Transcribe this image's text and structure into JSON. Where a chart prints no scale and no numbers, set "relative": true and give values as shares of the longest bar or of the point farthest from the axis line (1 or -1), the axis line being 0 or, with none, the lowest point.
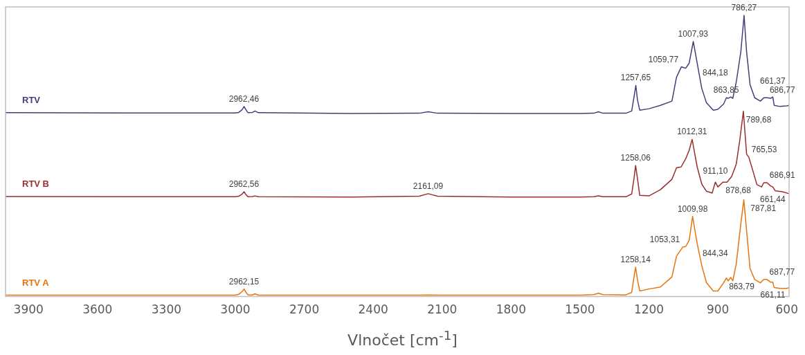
{
  "chart_data": {
    "type": "line",
    "relative": true,
    "xlabel": "Vlnočet [cm$^{-1}$]",
    "xlim": [
      4000,
      590
    ],
    "xticks": [
      3900,
      3600,
      3300,
      3000,
      2700,
      2400,
      2100,
      1800,
      1500,
      1200,
      900,
      600
    ],
    "grid": false,
    "legend": false,
    "marker": "none",
    "line_style": "solid",
    "series": [
      {
        "name": "RTV",
        "color": "#4b3a78",
        "x": [
          4000,
          3500,
          3000,
          2985,
          2970,
          2962,
          2955,
          2945,
          2925,
          2915,
          2900,
          2500,
          2200,
          2161,
          2120,
          1800,
          1500,
          1440,
          1420,
          1400,
          1300,
          1275,
          1265,
          1257,
          1250,
          1240,
          1200,
          1150,
          1100,
          1080,
          1059,
          1040,
          1025,
          1007,
          990,
          970,
          950,
          920,
          900,
          875,
          863,
          855,
          844,
          835,
          820,
          800,
          786,
          775,
          760,
          740,
          715,
          700,
          686,
          670,
          661,
          655,
          630,
          600,
          590
        ],
        "values": [
          0.654,
          0.653,
          0.653,
          0.655,
          0.665,
          0.676,
          0.666,
          0.654,
          0.655,
          0.66,
          0.654,
          0.651,
          0.652,
          0.657,
          0.652,
          0.651,
          0.651,
          0.652,
          0.657,
          0.652,
          0.652,
          0.66,
          0.71,
          0.751,
          0.7,
          0.663,
          0.668,
          0.68,
          0.695,
          0.78,
          0.817,
          0.812,
          0.83,
          0.907,
          0.83,
          0.74,
          0.69,
          0.663,
          0.666,
          0.685,
          0.707,
          0.705,
          0.71,
          0.705,
          0.763,
          0.871,
          1.0,
          0.871,
          0.754,
          0.707,
          0.695,
          0.707,
          0.707,
          0.705,
          0.71,
          0.68,
          0.676,
          0.678,
          0.68
        ]
      },
      {
        "name": "RTV B",
        "color": "#9b2c2c",
        "x": [
          4000,
          3500,
          3000,
          2985,
          2970,
          2962,
          2955,
          2945,
          2925,
          2915,
          2900,
          2500,
          2200,
          2161,
          2120,
          1800,
          1500,
          1440,
          1420,
          1400,
          1300,
          1275,
          1265,
          1258,
          1250,
          1240,
          1200,
          1150,
          1100,
          1080,
          1060,
          1040,
          1025,
          1012,
          990,
          970,
          950,
          925,
          911,
          900,
          878,
          860,
          840,
          820,
          805,
          789,
          775,
          765,
          750,
          730,
          710,
          700,
          686,
          670,
          661,
          650,
          620,
          590
        ],
        "values": [
          0.356,
          0.355,
          0.355,
          0.357,
          0.365,
          0.373,
          0.364,
          0.355,
          0.356,
          0.358,
          0.355,
          0.354,
          0.357,
          0.366,
          0.357,
          0.354,
          0.354,
          0.355,
          0.358,
          0.355,
          0.355,
          0.365,
          0.42,
          0.466,
          0.42,
          0.36,
          0.358,
          0.38,
          0.417,
          0.458,
          0.461,
          0.49,
          0.52,
          0.559,
          0.461,
          0.4,
          0.375,
          0.368,
          0.407,
          0.39,
          0.407,
          0.407,
          0.427,
          0.471,
          0.554,
          0.659,
          0.507,
          0.495,
          0.454,
          0.398,
          0.39,
          0.405,
          0.405,
          0.393,
          0.39,
          0.376,
          0.373,
          0.366
        ]
      },
      {
        "name": "RTV A",
        "color": "#e8720c",
        "x": [
          4000,
          3500,
          3000,
          2985,
          2970,
          2962,
          2955,
          2945,
          2925,
          2915,
          2900,
          2500,
          2200,
          2161,
          2120,
          1800,
          1500,
          1440,
          1420,
          1400,
          1300,
          1275,
          1265,
          1258,
          1250,
          1240,
          1200,
          1150,
          1100,
          1080,
          1053,
          1040,
          1025,
          1010,
          990,
          970,
          950,
          920,
          900,
          875,
          863,
          855,
          844,
          835,
          820,
          800,
          787,
          775,
          760,
          740,
          715,
          700,
          687,
          670,
          661,
          655,
          630,
          600,
          590
        ],
        "values": [
          0.005,
          0.005,
          0.005,
          0.008,
          0.018,
          0.027,
          0.017,
          0.006,
          0.006,
          0.01,
          0.005,
          0.005,
          0.005,
          0.006,
          0.005,
          0.005,
          0.005,
          0.007,
          0.012,
          0.007,
          0.006,
          0.015,
          0.07,
          0.105,
          0.06,
          0.02,
          0.027,
          0.034,
          0.07,
          0.144,
          0.176,
          0.178,
          0.2,
          0.285,
          0.188,
          0.11,
          0.05,
          0.02,
          0.02,
          0.049,
          0.066,
          0.056,
          0.068,
          0.056,
          0.117,
          0.26,
          0.344,
          0.234,
          0.1,
          0.061,
          0.049,
          0.061,
          0.061,
          0.051,
          0.051,
          0.032,
          0.029,
          0.029,
          0.032
        ]
      }
    ],
    "annotations": [
      {
        "text": "2962,46",
        "x": 2962.46,
        "y": 0.676
      },
      {
        "text": "1257,65",
        "x": 1257.65,
        "y": 0.751
      },
      {
        "text": "1059,77",
        "x": 1059.77,
        "y": 0.817
      },
      {
        "text": "1007,93",
        "x": 1007.93,
        "y": 0.907
      },
      {
        "text": "863,85",
        "x": 863.85,
        "y": 0.707
      },
      {
        "text": "844,18",
        "x": 844.18,
        "y": 0.71
      },
      {
        "text": "786,27",
        "x": 786.27,
        "y": 1.0
      },
      {
        "text": "686,77",
        "x": 686.77,
        "y": 0.707
      },
      {
        "text": "661,37",
        "x": 661.37,
        "y": 0.71
      },
      {
        "text": "2962,56",
        "x": 2962.56,
        "y": 0.373
      },
      {
        "text": "2161,09",
        "x": 2161.09,
        "y": 0.366
      },
      {
        "text": "1258,06",
        "x": 1258.06,
        "y": 0.466
      },
      {
        "text": "1012,31",
        "x": 1012.31,
        "y": 0.559
      },
      {
        "text": "911,10",
        "x": 911.1,
        "y": 0.407
      },
      {
        "text": "878,68",
        "x": 878.68,
        "y": 0.407
      },
      {
        "text": "789,68",
        "x": 789.68,
        "y": 0.659
      },
      {
        "text": "765,53",
        "x": 765.53,
        "y": 0.495
      },
      {
        "text": "686,91",
        "x": 686.91,
        "y": 0.405
      },
      {
        "text": "661,44",
        "x": 661.44,
        "y": 0.39
      },
      {
        "text": "2962,15",
        "x": 2962.15,
        "y": 0.027
      },
      {
        "text": "1258,14",
        "x": 1258.14,
        "y": 0.105
      },
      {
        "text": "1053,31",
        "x": 1053.31,
        "y": 0.176
      },
      {
        "text": "1009,98",
        "x": 1009.98,
        "y": 0.285
      },
      {
        "text": "863,79",
        "x": 863.79,
        "y": 0.066
      },
      {
        "text": "844,34",
        "x": 844.34,
        "y": 0.068
      },
      {
        "text": "787,81",
        "x": 787.81,
        "y": 0.344
      },
      {
        "text": "687,77",
        "x": 687.77,
        "y": 0.061
      },
      {
        "text": "661,11",
        "x": 661.11,
        "y": 0.051
      }
    ]
  }
}
